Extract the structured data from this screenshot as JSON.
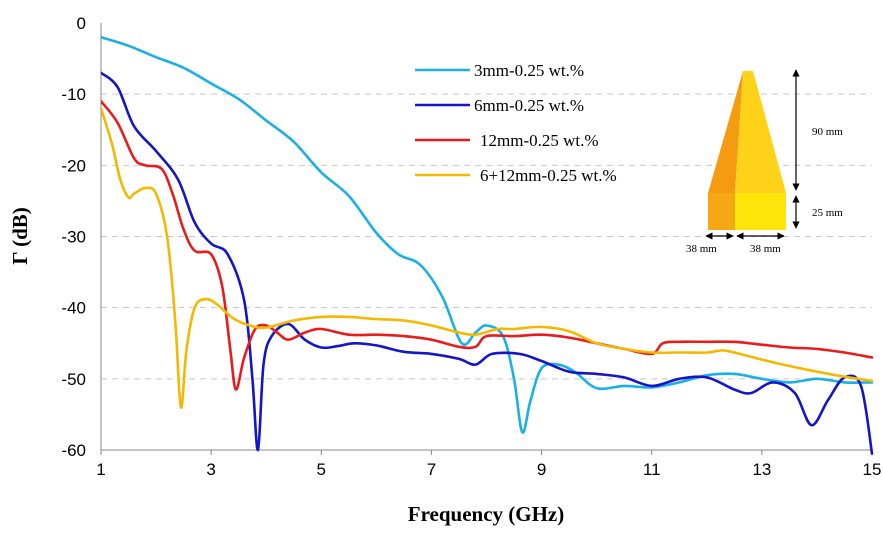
{
  "chart_data": {
    "type": "line",
    "title": "",
    "xlabel": "Frequency (GHz)",
    "ylabel": "Γ (dB)",
    "xlim": [
      1,
      15
    ],
    "ylim": [
      -60,
      0
    ],
    "xticks": [
      1,
      3,
      5,
      7,
      9,
      11,
      13,
      15
    ],
    "yticks": [
      0,
      -10,
      -20,
      -30,
      -40,
      -50,
      -60
    ],
    "grid": "horizontal-dashed",
    "legend_position": "top-center",
    "series": [
      {
        "name": "3mm-0.25 wt.%",
        "color": "#1ab0e6",
        "points": [
          [
            1,
            -2
          ],
          [
            1.5,
            -3.2
          ],
          [
            2,
            -4.8
          ],
          [
            2.5,
            -6.3
          ],
          [
            3,
            -8.5
          ],
          [
            3.5,
            -10.7
          ],
          [
            4,
            -13.7
          ],
          [
            4.5,
            -16.7
          ],
          [
            5,
            -21
          ],
          [
            5.5,
            -24.3
          ],
          [
            6,
            -29.5
          ],
          [
            6.4,
            -32.5
          ],
          [
            6.8,
            -34
          ],
          [
            7.2,
            -38.5
          ],
          [
            7.55,
            -45
          ],
          [
            7.8,
            -43.5
          ],
          [
            8,
            -42.5
          ],
          [
            8.3,
            -44
          ],
          [
            8.5,
            -50
          ],
          [
            8.65,
            -57.5
          ],
          [
            8.8,
            -53
          ],
          [
            9,
            -48.5
          ],
          [
            9.3,
            -48
          ],
          [
            9.6,
            -49
          ],
          [
            10,
            -51.3
          ],
          [
            10.5,
            -51
          ],
          [
            11,
            -51.2
          ],
          [
            11.5,
            -50.5
          ],
          [
            12,
            -49.5
          ],
          [
            12.5,
            -49.3
          ],
          [
            13,
            -50
          ],
          [
            13.5,
            -50.5
          ],
          [
            14,
            -50
          ],
          [
            14.5,
            -50.5
          ],
          [
            15,
            -50.5
          ]
        ]
      },
      {
        "name": "6mm-0.25 wt.%",
        "color": "#1515c8",
        "points": [
          [
            1,
            -7
          ],
          [
            1.3,
            -9
          ],
          [
            1.6,
            -14.5
          ],
          [
            2,
            -18
          ],
          [
            2.4,
            -22
          ],
          [
            2.7,
            -28
          ],
          [
            3,
            -31
          ],
          [
            3.3,
            -32.5
          ],
          [
            3.6,
            -39
          ],
          [
            3.75,
            -50
          ],
          [
            3.85,
            -60
          ],
          [
            3.95,
            -48
          ],
          [
            4.1,
            -44
          ],
          [
            4.4,
            -42.3
          ],
          [
            4.7,
            -44.5
          ],
          [
            5,
            -45.6
          ],
          [
            5.3,
            -45.4
          ],
          [
            5.6,
            -45
          ],
          [
            6,
            -45.3
          ],
          [
            6.5,
            -46.2
          ],
          [
            7,
            -46.5
          ],
          [
            7.5,
            -47.2
          ],
          [
            7.8,
            -48
          ],
          [
            8.1,
            -46.5
          ],
          [
            8.6,
            -46.5
          ],
          [
            9,
            -47.5
          ],
          [
            9.5,
            -49
          ],
          [
            10,
            -49.3
          ],
          [
            10.5,
            -49.8
          ],
          [
            11,
            -51
          ],
          [
            11.5,
            -50
          ],
          [
            12,
            -49.8
          ],
          [
            12.5,
            -51.5
          ],
          [
            12.8,
            -52
          ],
          [
            13.2,
            -50.5
          ],
          [
            13.6,
            -52
          ],
          [
            13.9,
            -56.5
          ],
          [
            14.2,
            -53
          ],
          [
            14.5,
            -49.8
          ],
          [
            14.8,
            -51
          ],
          [
            15,
            -60.5
          ]
        ]
      },
      {
        "name": "12mm-0.25 wt.%",
        "color": "#e81c1c",
        "points": [
          [
            1,
            -11
          ],
          [
            1.3,
            -14
          ],
          [
            1.6,
            -19
          ],
          [
            1.8,
            -20
          ],
          [
            2.1,
            -20.5
          ],
          [
            2.3,
            -24
          ],
          [
            2.5,
            -29
          ],
          [
            2.7,
            -32
          ],
          [
            3,
            -32.5
          ],
          [
            3.2,
            -37
          ],
          [
            3.35,
            -46
          ],
          [
            3.45,
            -51.5
          ],
          [
            3.6,
            -47
          ],
          [
            3.8,
            -43
          ],
          [
            4,
            -42.5
          ],
          [
            4.2,
            -43.5
          ],
          [
            4.4,
            -44.5
          ],
          [
            4.7,
            -43.5
          ],
          [
            5,
            -43
          ],
          [
            5.5,
            -43.8
          ],
          [
            6,
            -43.8
          ],
          [
            6.5,
            -44
          ],
          [
            7,
            -44.5
          ],
          [
            7.5,
            -45.5
          ],
          [
            7.8,
            -45.5
          ],
          [
            8,
            -44
          ],
          [
            8.5,
            -44
          ],
          [
            9,
            -43.8
          ],
          [
            9.5,
            -44.2
          ],
          [
            10,
            -45
          ],
          [
            10.5,
            -45.8
          ],
          [
            11,
            -46.5
          ],
          [
            11.2,
            -45
          ],
          [
            11.5,
            -44.8
          ],
          [
            12,
            -44.8
          ],
          [
            12.5,
            -44.8
          ],
          [
            13,
            -45.2
          ],
          [
            13.5,
            -45.6
          ],
          [
            14,
            -45.8
          ],
          [
            14.5,
            -46.3
          ],
          [
            15,
            -47
          ]
        ]
      },
      {
        "name": "6+12mm-0.25 wt.%",
        "color": "#f5b800",
        "points": [
          [
            1,
            -12
          ],
          [
            1.2,
            -17
          ],
          [
            1.35,
            -22
          ],
          [
            1.5,
            -24.5
          ],
          [
            1.6,
            -24
          ],
          [
            1.8,
            -23.2
          ],
          [
            2,
            -24
          ],
          [
            2.2,
            -30
          ],
          [
            2.35,
            -42
          ],
          [
            2.45,
            -54
          ],
          [
            2.55,
            -46
          ],
          [
            2.7,
            -40
          ],
          [
            2.9,
            -38.8
          ],
          [
            3.1,
            -39.5
          ],
          [
            3.4,
            -41.5
          ],
          [
            3.7,
            -42.5
          ],
          [
            4,
            -42.8
          ],
          [
            4.5,
            -41.8
          ],
          [
            5,
            -41.3
          ],
          [
            5.5,
            -41.3
          ],
          [
            6,
            -41.6
          ],
          [
            6.5,
            -41.8
          ],
          [
            7,
            -42.5
          ],
          [
            7.5,
            -43.5
          ],
          [
            7.8,
            -43.8
          ],
          [
            8.2,
            -43
          ],
          [
            8.5,
            -43
          ],
          [
            9,
            -42.7
          ],
          [
            9.5,
            -43.3
          ],
          [
            10,
            -45
          ],
          [
            10.5,
            -45.8
          ],
          [
            11,
            -46.3
          ],
          [
            11.5,
            -46.3
          ],
          [
            12,
            -46.3
          ],
          [
            12.3,
            -46
          ],
          [
            12.6,
            -46.5
          ],
          [
            13,
            -47.3
          ],
          [
            13.5,
            -48.2
          ],
          [
            14,
            -49
          ],
          [
            14.5,
            -49.7
          ],
          [
            15,
            -50.3
          ]
        ]
      }
    ],
    "inset": {
      "height_upper": "90 mm",
      "height_lower": "25 mm",
      "width_left": "38 mm",
      "width_right": "38 mm",
      "colors": {
        "pyramid_left": "#f59b12",
        "pyramid_right": "#ffd21a",
        "base_left": "#f5a814",
        "base_right": "#ffe60a"
      }
    }
  }
}
